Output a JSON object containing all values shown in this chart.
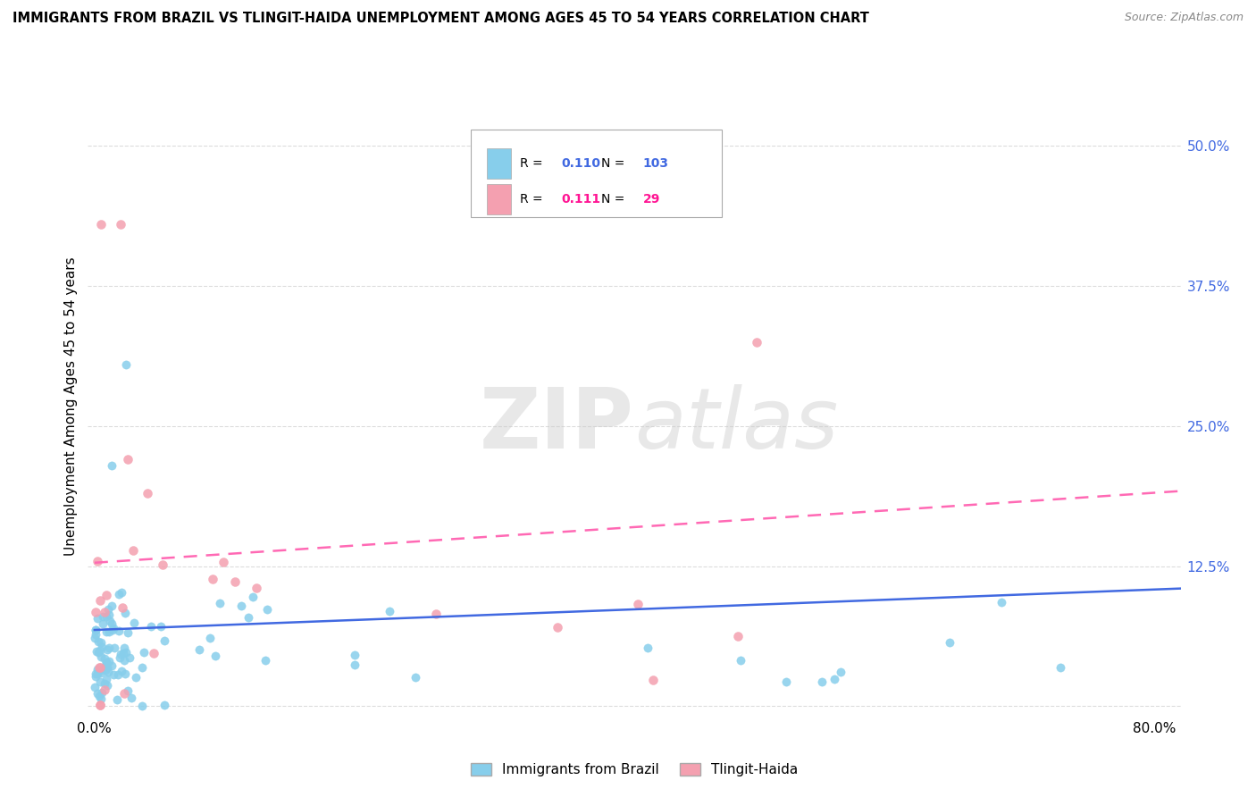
{
  "title": "IMMIGRANTS FROM BRAZIL VS TLINGIT-HAIDA UNEMPLOYMENT AMONG AGES 45 TO 54 YEARS CORRELATION CHART",
  "source": "Source: ZipAtlas.com",
  "ylabel": "Unemployment Among Ages 45 to 54 years",
  "yticks": [
    0.0,
    0.125,
    0.25,
    0.375,
    0.5
  ],
  "ytick_labels": [
    "",
    "12.5%",
    "25.0%",
    "37.5%",
    "50.0%"
  ],
  "xlim": [
    -0.005,
    0.82
  ],
  "ylim": [
    -0.01,
    0.545
  ],
  "legend1_R": "0.110",
  "legend1_N": "103",
  "legend2_R": "0.111",
  "legend2_N": "29",
  "brazil_color": "#87CEEB",
  "tlingit_color": "#F4A0B0",
  "brazil_line_color": "#4169E1",
  "tlingit_line_color": "#FF69B4",
  "blue_text_color": "#4169E1",
  "pink_text_color": "#FF1493",
  "watermark": "ZIPatlas",
  "background_color": "#FFFFFF",
  "grid_color": "#DCDCDC"
}
